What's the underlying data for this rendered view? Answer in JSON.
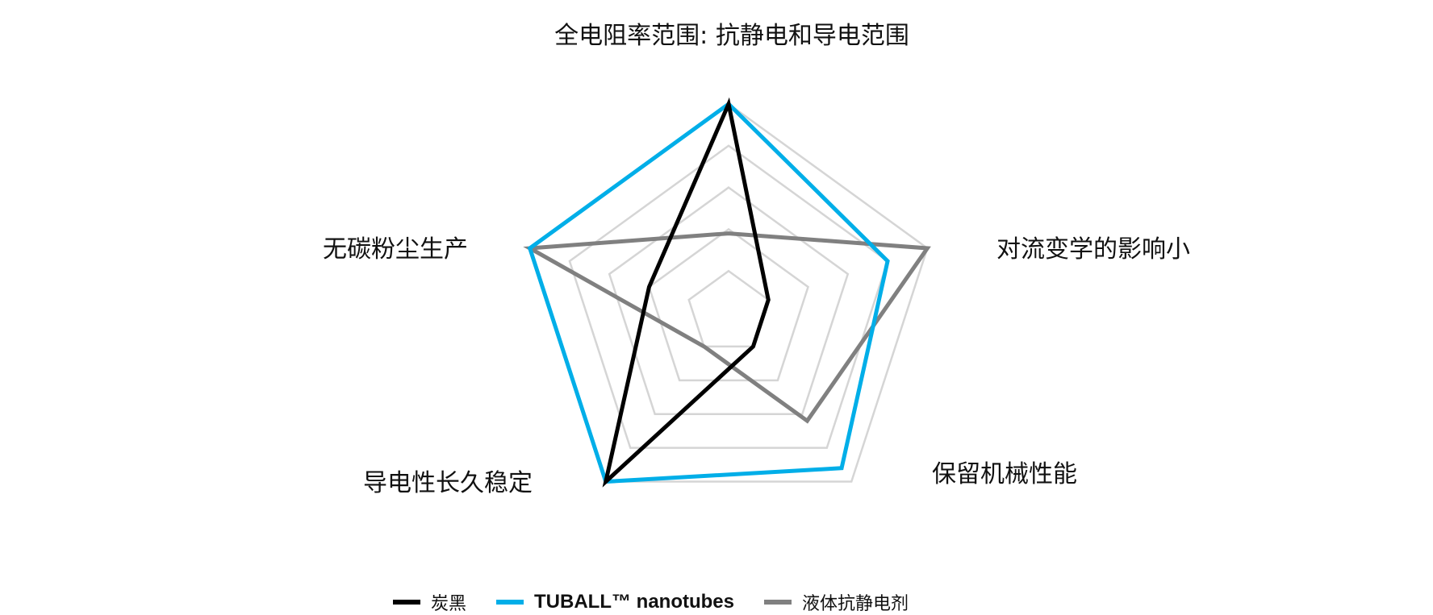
{
  "chart_data": {
    "type": "radar",
    "axes": [
      "全电阻率范围: 抗静电和导电范围",
      "对流变学的影响小",
      "保留机械性能",
      "导电性长久稳定",
      "无碳粉尘生产"
    ],
    "rlim": [
      0,
      5
    ],
    "rings": 5,
    "grid": true,
    "legend_position": "bottom",
    "series": [
      {
        "name": "炭黑",
        "color": "#000000",
        "values": [
          5,
          1,
          1,
          5,
          2
        ]
      },
      {
        "name": "TUBALL™ nanotubes",
        "color": "#00aee8",
        "values": [
          5,
          4,
          4.6,
          5,
          5
        ]
      },
      {
        "name": "液体抗静电剂",
        "color": "#808080",
        "values": [
          1.9,
          5,
          3.2,
          1,
          5
        ]
      }
    ],
    "grid_color": "#d5d5d5"
  }
}
